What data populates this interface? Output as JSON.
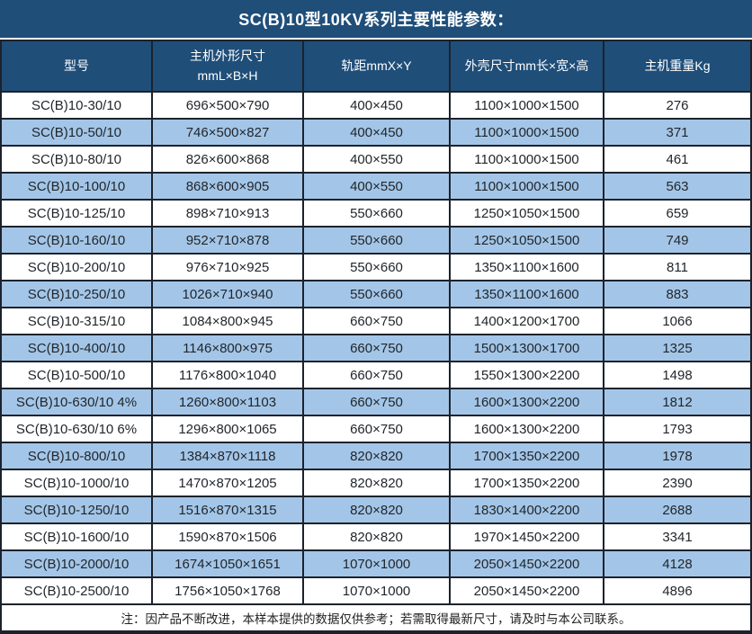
{
  "title": "SC(B)10型10KV系列主要性能参数：",
  "chart_data": {
    "type": "table",
    "title": "SC(B)10型10KV系列主要性能参数：",
    "columns": [
      "型号",
      "主机外形尺寸\nmmL×B×H",
      "轨距mmX×Y",
      "外壳尺寸mm长×宽×高",
      "主机重量Kg"
    ],
    "rows": [
      [
        "SC(B)10-30/10",
        "696×500×790",
        "400×450",
        "1100×1000×1500",
        "276"
      ],
      [
        "SC(B)10-50/10",
        "746×500×827",
        "400×450",
        "1100×1000×1500",
        "371"
      ],
      [
        "SC(B)10-80/10",
        "826×600×868",
        "400×550",
        "1100×1000×1500",
        "461"
      ],
      [
        "SC(B)10-100/10",
        "868×600×905",
        "400×550",
        "1100×1000×1500",
        "563"
      ],
      [
        "SC(B)10-125/10",
        "898×710×913",
        "550×660",
        "1250×1050×1500",
        "659"
      ],
      [
        "SC(B)10-160/10",
        "952×710×878",
        "550×660",
        "1250×1050×1500",
        "749"
      ],
      [
        "SC(B)10-200/10",
        "976×710×925",
        "550×660",
        "1350×1100×1600",
        "811"
      ],
      [
        "SC(B)10-250/10",
        "1026×710×940",
        "550×660",
        "1350×1100×1600",
        "883"
      ],
      [
        "SC(B)10-315/10",
        "1084×800×945",
        "660×750",
        "1400×1200×1700",
        "1066"
      ],
      [
        "SC(B)10-400/10",
        "1146×800×975",
        "660×750",
        "1500×1300×1700",
        "1325"
      ],
      [
        "SC(B)10-500/10",
        "1176×800×1040",
        "660×750",
        "1550×1300×2200",
        "1498"
      ],
      [
        "SC(B)10-630/10 4%",
        "1260×800×1103",
        "660×750",
        "1600×1300×2200",
        "1812"
      ],
      [
        "SC(B)10-630/10 6%",
        "1296×800×1065",
        "660×750",
        "1600×1300×2200",
        "1793"
      ],
      [
        "SC(B)10-800/10",
        "1384×870×1118",
        "820×820",
        "1700×1350×2200",
        "1978"
      ],
      [
        "SC(B)10-1000/10",
        "1470×870×1205",
        "820×820",
        "1700×1350×2200",
        "2390"
      ],
      [
        "SC(B)10-1250/10",
        "1516×870×1315",
        "820×820",
        "1830×1400×2200",
        "2688"
      ],
      [
        "SC(B)10-1600/10",
        "1590×870×1506",
        "820×820",
        "1970×1450×2200",
        "3341"
      ],
      [
        "SC(B)10-2000/10",
        "1674×1050×1651",
        "1070×1000",
        "2050×1450×2200",
        "4128"
      ],
      [
        "SC(B)10-2500/10",
        "1756×1050×1768",
        "1070×1000",
        "2050×1450×2200",
        "4896"
      ]
    ],
    "note": "注：因产品不断改进，本样本提供的数据仅供参考；若需取得最新尺寸，请及时与本公司联系。"
  },
  "colors": {
    "header_bg": "#1f4e79",
    "header_text": "#ffffff",
    "row_bg": "#ffffff",
    "row_alt_bg": "#a3c6e8",
    "border": "#1c222c",
    "body_text": "#22262b"
  }
}
